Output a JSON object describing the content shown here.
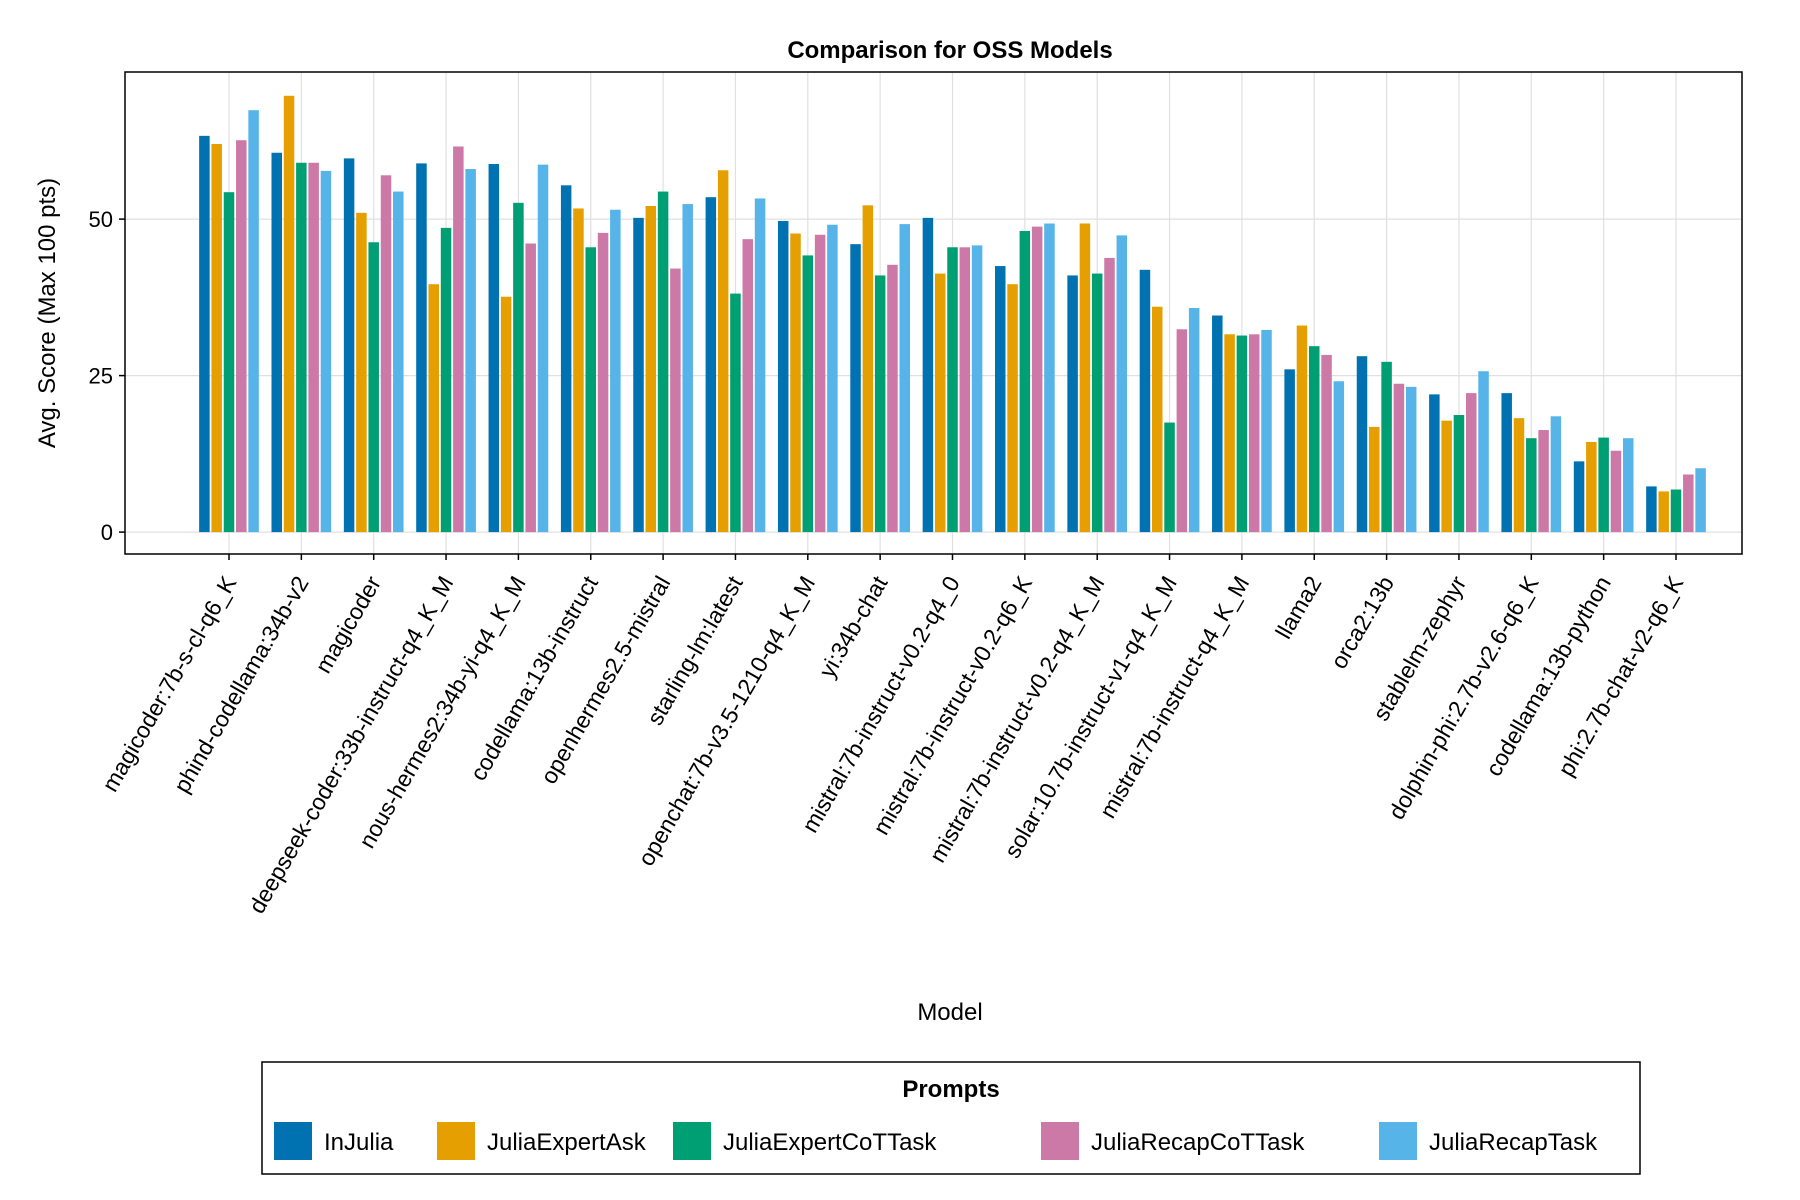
{
  "chart_data": {
    "type": "bar",
    "title": "Comparison for OSS Models",
    "xlabel": "Model",
    "ylabel": "Avg. Score (Max 100 pts)",
    "ylim": [
      -3.5,
      73.5
    ],
    "yticks": [
      0,
      25,
      50
    ],
    "grid": true,
    "legend": {
      "title": "Prompts",
      "placement": "bottom"
    },
    "categories": [
      "magicoder:7b-s-cl-q6_K",
      "phind-codellama:34b-v2",
      "magicoder",
      "deepseek-coder:33b-instruct-q4_K_M",
      "nous-hermes2:34b-yi-q4_K_M",
      "codellama:13b-instruct",
      "openhermes2.5-mistral",
      "starling-lm:latest",
      "openchat:7b-v3.5-1210-q4_K_M",
      "yi:34b-chat",
      "mistral:7b-instruct-v0.2-q4_0",
      "mistral:7b-instruct-v0.2-q6_K",
      "mistral:7b-instruct-v0.2-q4_K_M",
      "solar:10.7b-instruct-v1-q4_K_M",
      "mistral:7b-instruct-q4_K_M",
      "llama2",
      "orca2:13b",
      "stablelm-zephyr",
      "dolphin-phi:2.7b-v2.6-q6_K",
      "codellama:13b-python",
      "phi:2.7b-chat-v2-q6_K"
    ],
    "series": [
      {
        "name": "InJulia",
        "color": "#0072B2",
        "values": [
          63.3,
          60.6,
          59.7,
          58.9,
          58.8,
          55.4,
          50.2,
          53.5,
          49.7,
          46.0,
          50.2,
          42.5,
          41.0,
          41.9,
          34.6,
          26.0,
          28.1,
          22.0,
          22.2,
          11.3,
          7.3
        ]
      },
      {
        "name": "JuliaExpertAsk",
        "color": "#E69F00",
        "values": [
          62.0,
          69.7,
          51.0,
          39.6,
          37.6,
          51.7,
          52.1,
          57.8,
          47.7,
          52.2,
          41.3,
          39.6,
          49.3,
          36.0,
          31.6,
          33.0,
          16.8,
          17.8,
          18.2,
          14.4,
          6.5
        ]
      },
      {
        "name": "JuliaExpertCoTTask",
        "color": "#009E73",
        "values": [
          54.3,
          59.0,
          46.3,
          48.6,
          52.6,
          45.5,
          54.4,
          38.1,
          44.2,
          41.0,
          45.5,
          48.1,
          41.3,
          17.5,
          31.4,
          29.7,
          27.2,
          18.7,
          15.0,
          15.1,
          6.8
        ]
      },
      {
        "name": "JuliaRecapCoTTask",
        "color": "#CC79A7",
        "values": [
          62.6,
          59.0,
          57.0,
          61.6,
          46.1,
          47.8,
          42.1,
          46.8,
          47.5,
          42.7,
          45.5,
          48.8,
          43.8,
          32.4,
          31.6,
          28.3,
          23.7,
          22.2,
          16.3,
          13.0,
          9.2
        ]
      },
      {
        "name": "JuliaRecapTask",
        "color": "#56B4E9",
        "values": [
          67.4,
          57.7,
          54.4,
          58.0,
          58.7,
          51.5,
          52.4,
          53.3,
          49.1,
          49.2,
          45.8,
          49.3,
          47.4,
          35.8,
          32.3,
          24.1,
          23.2,
          25.7,
          18.5,
          15.0,
          10.2
        ]
      }
    ]
  }
}
